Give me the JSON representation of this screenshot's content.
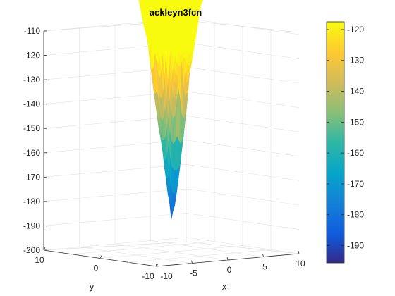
{
  "chart_data": {
    "type": "surface",
    "title": "ackleyn3fcn",
    "xlabel": "x",
    "ylabel": "y",
    "zlabel": "",
    "x_range": [
      -10,
      10
    ],
    "y_range": [
      -10,
      10
    ],
    "z_range": [
      -200,
      -110
    ],
    "x_ticks": [
      "-10",
      "-5",
      "0",
      "5",
      "10"
    ],
    "y_ticks": [
      "10",
      "0",
      "-10"
    ],
    "z_ticks": [
      "-110",
      "-120",
      "-130",
      "-140",
      "-150",
      "-160",
      "-170",
      "-180",
      "-190",
      "-200"
    ],
    "colorbar": {
      "range": [
        -195.6,
        -117.5
      ],
      "ticks": [
        "-120",
        "-130",
        "-140",
        "-150",
        "-160",
        "-170",
        "-180",
        "-190"
      ],
      "colormap": "parula"
    },
    "surface_min": -195.6,
    "surface_max": -117.5,
    "grid": true
  }
}
